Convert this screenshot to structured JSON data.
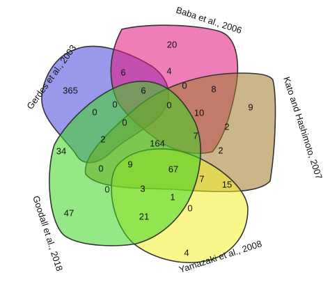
{
  "sets": [
    {
      "key": "baba",
      "label": "Baba et al., 2006",
      "color": "#e2137c"
    },
    {
      "key": "kato",
      "label": "Kato and Hashimoto, 2007",
      "color": "#9e7a2a"
    },
    {
      "key": "yamazaki",
      "label": "Yamazaki et al., 2008",
      "color": "#f4f02a"
    },
    {
      "key": "goodall",
      "label": "Goodall et al., 2018",
      "color": "#3ed621"
    },
    {
      "key": "gerdes",
      "label": "Gerdes et al., 2003",
      "color": "#4646dd"
    }
  ],
  "regions": [
    {
      "id": "r01",
      "count": "20"
    },
    {
      "id": "r02",
      "count": "6"
    },
    {
      "id": "r03",
      "count": "4"
    },
    {
      "id": "r04",
      "count": "0"
    },
    {
      "id": "r05",
      "count": "8"
    },
    {
      "id": "r06",
      "count": "365"
    },
    {
      "id": "r07",
      "count": "6"
    },
    {
      "id": "r08",
      "count": "0"
    },
    {
      "id": "r09",
      "count": "0"
    },
    {
      "id": "r10",
      "count": "9"
    },
    {
      "id": "r11",
      "count": "10"
    },
    {
      "id": "r12",
      "count": "0"
    },
    {
      "id": "r13",
      "count": "2"
    },
    {
      "id": "r14",
      "count": "0"
    },
    {
      "id": "r15",
      "count": "2"
    },
    {
      "id": "r16",
      "count": "164"
    },
    {
      "id": "r17",
      "count": "7"
    },
    {
      "id": "r18",
      "count": "2"
    },
    {
      "id": "r19",
      "count": "34"
    },
    {
      "id": "r20",
      "count": "0"
    },
    {
      "id": "r21",
      "count": "9"
    },
    {
      "id": "r22",
      "count": "67"
    },
    {
      "id": "r23",
      "count": "7"
    },
    {
      "id": "r24",
      "count": "15"
    },
    {
      "id": "r25",
      "count": "0"
    },
    {
      "id": "r26",
      "count": "3"
    },
    {
      "id": "r27",
      "count": "1"
    },
    {
      "id": "r28",
      "count": "47"
    },
    {
      "id": "r29",
      "count": "21"
    },
    {
      "id": "r30",
      "count": "0"
    },
    {
      "id": "r31",
      "count": "4"
    }
  ]
}
